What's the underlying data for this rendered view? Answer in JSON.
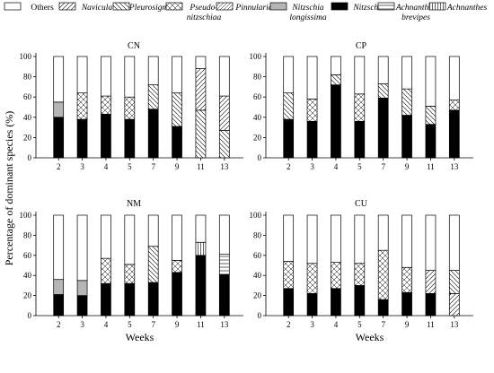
{
  "ylabel": "Percentage of dominant species (%)",
  "xlabel": "Weeks",
  "legend": [
    {
      "label": "Others",
      "pattern": "blank",
      "italic": false
    },
    {
      "label": "Navicula",
      "pattern": "diag",
      "italic": true
    },
    {
      "label": "Pleurosigma",
      "pattern": "back",
      "italic": true
    },
    {
      "label": "Pseudo-\nnitzschiaa",
      "pattern": "cross",
      "italic": true
    },
    {
      "label": "Pinnularia",
      "pattern": "diag2",
      "italic": true
    },
    {
      "label": "Nitzschia\nlongissima",
      "pattern": "gray",
      "italic": true
    },
    {
      "label": "Nitzschia",
      "pattern": "black",
      "italic": true
    },
    {
      "label": "Achnanthes\nbrevipes",
      "pattern": "hlines",
      "italic": true
    },
    {
      "label": "Achnanthes",
      "pattern": "vlines",
      "italic": true
    }
  ],
  "chart_data": [
    {
      "type": "bar",
      "title": "CN",
      "categories": [
        "2",
        "3",
        "4",
        "5",
        "7",
        "9",
        "11",
        "13"
      ],
      "ylim": [
        0,
        100
      ],
      "yticks": [
        0,
        20,
        40,
        60,
        80,
        100
      ],
      "series": [
        {
          "name": "Nitzschia",
          "values": [
            40,
            38,
            43,
            38,
            48,
            31,
            0,
            0
          ]
        },
        {
          "name": "Nitzschia longissima",
          "values": [
            15,
            0,
            0,
            0,
            0,
            0,
            0,
            0
          ]
        },
        {
          "name": "Pseudo-nitzschiaa",
          "values": [
            0,
            26,
            18,
            22,
            0,
            0,
            0,
            0
          ]
        },
        {
          "name": "Pleurosigma",
          "values": [
            0,
            0,
            0,
            0,
            24,
            33,
            47,
            27
          ]
        },
        {
          "name": "Navicula",
          "values": [
            0,
            0,
            0,
            0,
            0,
            0,
            41,
            34
          ]
        },
        {
          "name": "Others",
          "values": [
            45,
            36,
            39,
            40,
            28,
            36,
            12,
            39
          ]
        }
      ]
    },
    {
      "type": "bar",
      "title": "CP",
      "categories": [
        "2",
        "3",
        "4",
        "5",
        "7",
        "9",
        "11",
        "13"
      ],
      "ylim": [
        0,
        100
      ],
      "yticks": [
        0,
        20,
        40,
        60,
        80,
        100
      ],
      "series": [
        {
          "name": "Nitzschia",
          "values": [
            38,
            36,
            72,
            36,
            59,
            42,
            33,
            47
          ]
        },
        {
          "name": "Pseudo-nitzschiaa",
          "values": [
            0,
            22,
            0,
            27,
            0,
            0,
            0,
            10
          ]
        },
        {
          "name": "Pleurosigma",
          "values": [
            26,
            0,
            10,
            0,
            14,
            26,
            18,
            0
          ]
        },
        {
          "name": "Others",
          "values": [
            36,
            42,
            18,
            37,
            27,
            32,
            49,
            43
          ]
        }
      ]
    },
    {
      "type": "bar",
      "title": "NM",
      "categories": [
        "2",
        "3",
        "4",
        "5",
        "7",
        "9",
        "11",
        "13"
      ],
      "ylim": [
        0,
        100
      ],
      "yticks": [
        0,
        20,
        40,
        60,
        80,
        100
      ],
      "series": [
        {
          "name": "Nitzschia",
          "values": [
            21,
            20,
            32,
            32,
            33,
            43,
            60,
            41
          ]
        },
        {
          "name": "Nitzschia longissima",
          "values": [
            15,
            15,
            0,
            0,
            0,
            0,
            0,
            0
          ]
        },
        {
          "name": "Pseudo-nitzschiaa",
          "values": [
            0,
            0,
            25,
            19,
            0,
            12,
            0,
            0
          ]
        },
        {
          "name": "Pleurosigma",
          "values": [
            0,
            0,
            0,
            0,
            36,
            0,
            0,
            0
          ]
        },
        {
          "name": "Achnanthes",
          "values": [
            0,
            0,
            0,
            0,
            0,
            0,
            13,
            0
          ]
        },
        {
          "name": "Achnanthes brevipes",
          "values": [
            0,
            0,
            0,
            0,
            0,
            0,
            0,
            20
          ]
        },
        {
          "name": "Others",
          "values": [
            64,
            65,
            43,
            49,
            31,
            45,
            27,
            39
          ]
        }
      ]
    },
    {
      "type": "bar",
      "title": "CU",
      "categories": [
        "2",
        "3",
        "4",
        "5",
        "7",
        "9",
        "11",
        "13"
      ],
      "ylim": [
        0,
        100
      ],
      "yticks": [
        0,
        20,
        40,
        60,
        80,
        100
      ],
      "series": [
        {
          "name": "Nitzschia",
          "values": [
            27,
            22,
            27,
            30,
            16,
            23,
            22,
            0
          ]
        },
        {
          "name": "Pseudo-nitzschiaa",
          "values": [
            27,
            30,
            26,
            22,
            49,
            25,
            0,
            0
          ]
        },
        {
          "name": "Navicula",
          "values": [
            0,
            0,
            0,
            0,
            0,
            0,
            23,
            22
          ]
        },
        {
          "name": "Pleurosigma",
          "values": [
            0,
            0,
            0,
            0,
            0,
            0,
            0,
            23
          ]
        },
        {
          "name": "Others",
          "values": [
            46,
            48,
            47,
            48,
            35,
            52,
            55,
            55
          ]
        }
      ]
    }
  ]
}
